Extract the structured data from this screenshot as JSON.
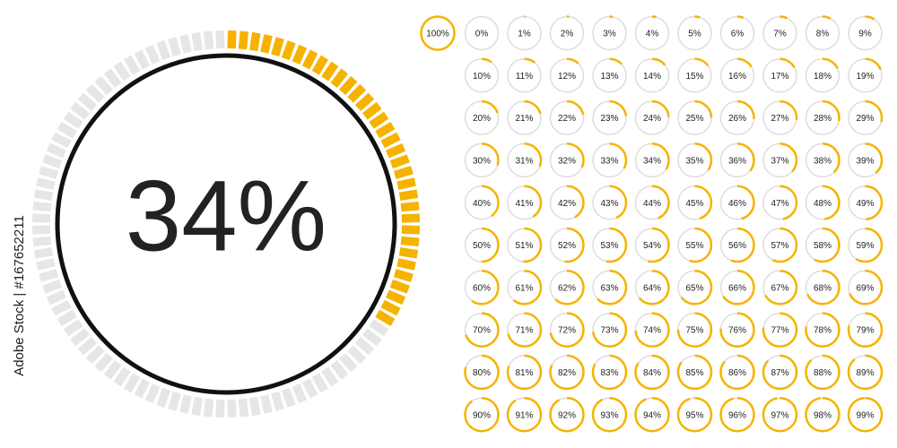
{
  "main": {
    "value": 34,
    "label": "34%"
  },
  "watermark": "Adobe Stock | #167652211",
  "gauges": [
    {
      "value": 100,
      "label": "100%"
    },
    {
      "value": 0,
      "label": "0%"
    },
    {
      "value": 1,
      "label": "1%"
    },
    {
      "value": 2,
      "label": "2%"
    },
    {
      "value": 3,
      "label": "3%"
    },
    {
      "value": 4,
      "label": "4%"
    },
    {
      "value": 5,
      "label": "5%"
    },
    {
      "value": 6,
      "label": "6%"
    },
    {
      "value": 7,
      "label": "7%"
    },
    {
      "value": 8,
      "label": "8%"
    },
    {
      "value": 9,
      "label": "9%"
    },
    {
      "value": 10,
      "label": "10%"
    },
    {
      "value": 11,
      "label": "11%"
    },
    {
      "value": 12,
      "label": "12%"
    },
    {
      "value": 13,
      "label": "13%"
    },
    {
      "value": 14,
      "label": "14%"
    },
    {
      "value": 15,
      "label": "15%"
    },
    {
      "value": 16,
      "label": "16%"
    },
    {
      "value": 17,
      "label": "17%"
    },
    {
      "value": 18,
      "label": "18%"
    },
    {
      "value": 19,
      "label": "19%"
    },
    {
      "value": 20,
      "label": "20%"
    },
    {
      "value": 21,
      "label": "21%"
    },
    {
      "value": 22,
      "label": "22%"
    },
    {
      "value": 23,
      "label": "23%"
    },
    {
      "value": 24,
      "label": "24%"
    },
    {
      "value": 25,
      "label": "25%"
    },
    {
      "value": 26,
      "label": "26%"
    },
    {
      "value": 27,
      "label": "27%"
    },
    {
      "value": 28,
      "label": "28%"
    },
    {
      "value": 29,
      "label": "29%"
    },
    {
      "value": 30,
      "label": "30%"
    },
    {
      "value": 31,
      "label": "31%"
    },
    {
      "value": 32,
      "label": "32%"
    },
    {
      "value": 33,
      "label": "33%"
    },
    {
      "value": 34,
      "label": "34%"
    },
    {
      "value": 35,
      "label": "35%"
    },
    {
      "value": 36,
      "label": "36%"
    },
    {
      "value": 37,
      "label": "37%"
    },
    {
      "value": 38,
      "label": "38%"
    },
    {
      "value": 39,
      "label": "39%"
    },
    {
      "value": 40,
      "label": "40%"
    },
    {
      "value": 41,
      "label": "41%"
    },
    {
      "value": 42,
      "label": "42%"
    },
    {
      "value": 43,
      "label": "43%"
    },
    {
      "value": 44,
      "label": "44%"
    },
    {
      "value": 45,
      "label": "45%"
    },
    {
      "value": 46,
      "label": "46%"
    },
    {
      "value": 47,
      "label": "47%"
    },
    {
      "value": 48,
      "label": "48%"
    },
    {
      "value": 49,
      "label": "49%"
    },
    {
      "value": 50,
      "label": "50%"
    },
    {
      "value": 51,
      "label": "51%"
    },
    {
      "value": 52,
      "label": "52%"
    },
    {
      "value": 53,
      "label": "53%"
    },
    {
      "value": 54,
      "label": "54%"
    },
    {
      "value": 55,
      "label": "55%"
    },
    {
      "value": 56,
      "label": "56%"
    },
    {
      "value": 57,
      "label": "57%"
    },
    {
      "value": 58,
      "label": "58%"
    },
    {
      "value": 59,
      "label": "59%"
    },
    {
      "value": 60,
      "label": "60%"
    },
    {
      "value": 61,
      "label": "61%"
    },
    {
      "value": 62,
      "label": "62%"
    },
    {
      "value": 63,
      "label": "63%"
    },
    {
      "value": 64,
      "label": "64%"
    },
    {
      "value": 65,
      "label": "65%"
    },
    {
      "value": 66,
      "label": "66%"
    },
    {
      "value": 67,
      "label": "67%"
    },
    {
      "value": 68,
      "label": "68%"
    },
    {
      "value": 69,
      "label": "69%"
    },
    {
      "value": 70,
      "label": "70%"
    },
    {
      "value": 71,
      "label": "71%"
    },
    {
      "value": 72,
      "label": "72%"
    },
    {
      "value": 73,
      "label": "73%"
    },
    {
      "value": 74,
      "label": "74%"
    },
    {
      "value": 75,
      "label": "75%"
    },
    {
      "value": 76,
      "label": "76%"
    },
    {
      "value": 77,
      "label": "77%"
    },
    {
      "value": 78,
      "label": "78%"
    },
    {
      "value": 79,
      "label": "79%"
    },
    {
      "value": 80,
      "label": "80%"
    },
    {
      "value": 81,
      "label": "81%"
    },
    {
      "value": 82,
      "label": "82%"
    },
    {
      "value": 83,
      "label": "83%"
    },
    {
      "value": 84,
      "label": "84%"
    },
    {
      "value": 85,
      "label": "85%"
    },
    {
      "value": 86,
      "label": "86%"
    },
    {
      "value": 87,
      "label": "87%"
    },
    {
      "value": 88,
      "label": "88%"
    },
    {
      "value": 89,
      "label": "89%"
    },
    {
      "value": 90,
      "label": "90%"
    },
    {
      "value": 91,
      "label": "91%"
    },
    {
      "value": 92,
      "label": "92%"
    },
    {
      "value": 93,
      "label": "93%"
    },
    {
      "value": 94,
      "label": "94%"
    },
    {
      "value": 95,
      "label": "95%"
    },
    {
      "value": 96,
      "label": "96%"
    },
    {
      "value": 97,
      "label": "97%"
    },
    {
      "value": 98,
      "label": "98%"
    },
    {
      "value": 99,
      "label": "99%"
    }
  ]
}
